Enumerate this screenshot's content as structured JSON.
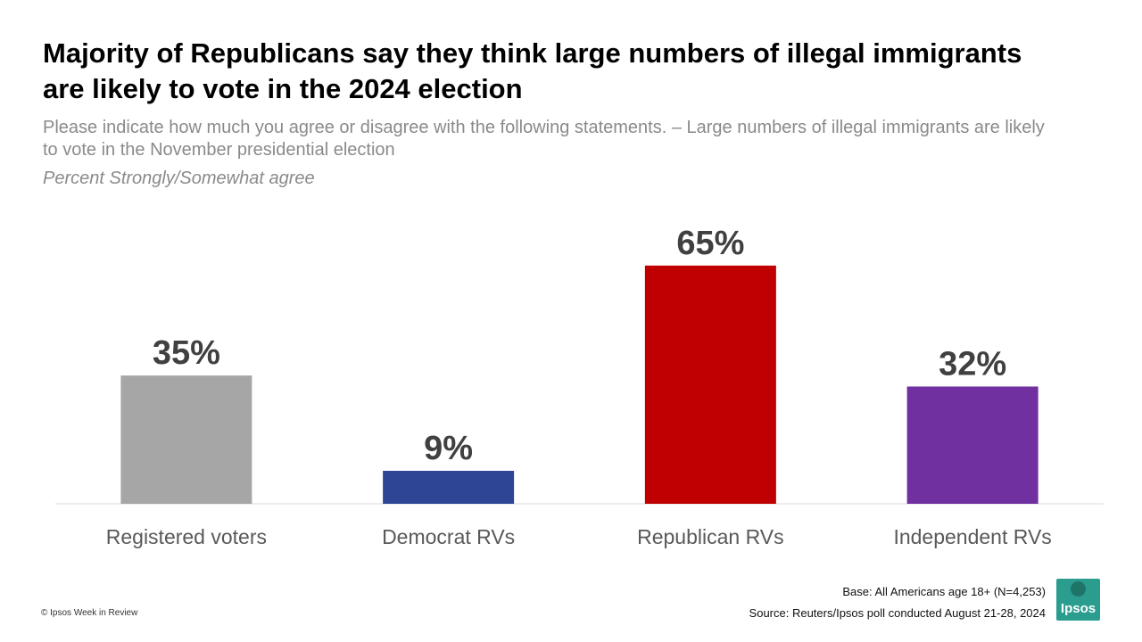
{
  "header": {
    "title": "Majority of Republicans say they think large numbers of illegal immigrants are likely to vote in the 2024 election",
    "subtitle": "Please indicate how much you agree or disagree with the following statements. – Large numbers of illegal immigrants are likely to vote in the November presidential election",
    "note": "Percent Strongly/Somewhat agree"
  },
  "chart_data": {
    "type": "bar",
    "categories": [
      "Registered voters",
      "Democrat RVs",
      "Republican RVs",
      "Independent RVs"
    ],
    "values": [
      35,
      9,
      65,
      32
    ],
    "value_labels": [
      "35%",
      "9%",
      "65%",
      "32%"
    ],
    "colors": [
      "#a6a6a6",
      "#2e4595",
      "#c00000",
      "#7030a0"
    ],
    "ylim": [
      0,
      100
    ],
    "grid": false,
    "legend": "none"
  },
  "footer": {
    "copyright": "© Ipsos Week in Review",
    "base": "Base: All Americans age 18+ (N=4,253)",
    "source": "Source: Reuters/Ipsos poll conducted August 21-28, 2024",
    "logo_text": "Ipsos"
  }
}
